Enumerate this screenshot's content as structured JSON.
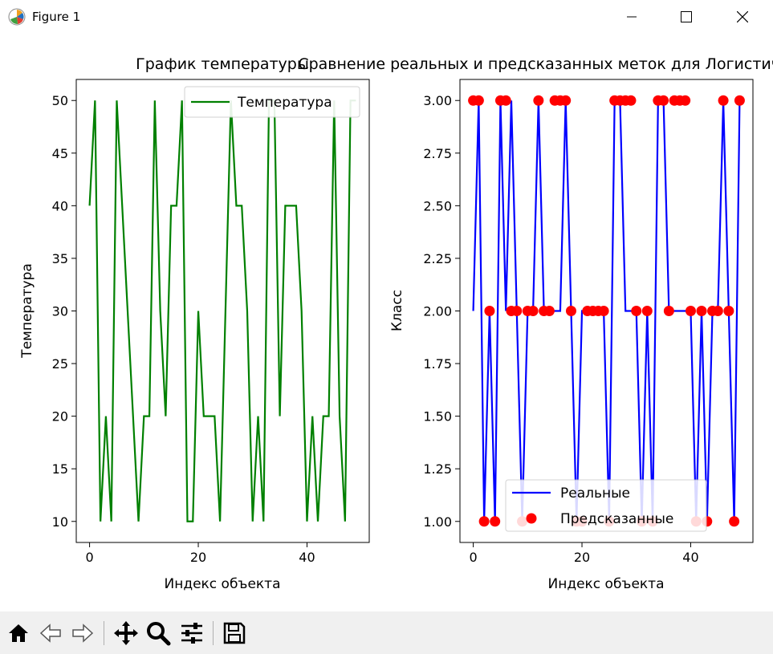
{
  "window": {
    "title": "Figure 1"
  },
  "chart_data": [
    {
      "type": "line",
      "title": "График температуры",
      "xlabel": "Индекс объекта",
      "ylabel": "Температура",
      "xlim": [
        -2.45,
        51.45
      ],
      "ylim": [
        8,
        52
      ],
      "xticks": [
        "0",
        "20",
        "40"
      ],
      "yticks": [
        "10",
        "15",
        "20",
        "25",
        "30",
        "35",
        "40",
        "45",
        "50"
      ],
      "legend_position": "top-right",
      "series": [
        {
          "name": "Температура",
          "color": "#008000",
          "x": [
            0,
            1,
            2,
            3,
            4,
            5,
            6,
            7,
            8,
            9,
            10,
            11,
            12,
            13,
            14,
            15,
            16,
            17,
            18,
            19,
            20,
            21,
            22,
            23,
            24,
            25,
            26,
            27,
            28,
            29,
            30,
            31,
            32,
            33,
            34,
            35,
            36,
            37,
            38,
            39,
            40,
            41,
            42,
            43,
            44,
            45,
            46,
            47,
            48,
            49
          ],
          "y": [
            40,
            50,
            10,
            20,
            10,
            50,
            40,
            30,
            20,
            10,
            20,
            20,
            50,
            30,
            20,
            40,
            40,
            50,
            10,
            10,
            30,
            20,
            20,
            20,
            10,
            30,
            50,
            40,
            40,
            30,
            10,
            20,
            10,
            50,
            50,
            20,
            40,
            40,
            40,
            30,
            10,
            20,
            10,
            20,
            20,
            50,
            20,
            10,
            50,
            50
          ]
        }
      ]
    },
    {
      "type": "line",
      "title": "Сравнение реальных и предсказанных меток для Логистической регрессии",
      "xlabel": "Индекс объекта",
      "ylabel": "Класс",
      "xlim": [
        -2.45,
        51.45
      ],
      "ylim": [
        0.9,
        3.1
      ],
      "xticks": [
        "0",
        "20",
        "40"
      ],
      "yticks": [
        "1.00",
        "1.25",
        "1.50",
        "1.75",
        "2.00",
        "2.25",
        "2.50",
        "2.75",
        "3.00"
      ],
      "legend_position": "bottom-right",
      "series": [
        {
          "name": "Реальные",
          "kind": "line",
          "color": "#0000ff",
          "x": [
            0,
            1,
            2,
            3,
            4,
            5,
            6,
            7,
            8,
            9,
            10,
            11,
            12,
            13,
            14,
            15,
            16,
            17,
            18,
            19,
            20,
            21,
            22,
            23,
            24,
            25,
            26,
            27,
            28,
            29,
            30,
            31,
            32,
            33,
            34,
            35,
            36,
            37,
            38,
            39,
            40,
            41,
            42,
            43,
            44,
            45,
            46,
            47,
            48,
            49
          ],
          "y": [
            2,
            3,
            1,
            2,
            1,
            3,
            2,
            3,
            2,
            1,
            2,
            2,
            3,
            2,
            2,
            2,
            2,
            3,
            2,
            1,
            2,
            2,
            2,
            2,
            2,
            1,
            3,
            3,
            2,
            2,
            2,
            1,
            2,
            1,
            3,
            3,
            2,
            2,
            2,
            2,
            2,
            1,
            2,
            1,
            2,
            2,
            3,
            2,
            1,
            3
          ]
        },
        {
          "name": "Предсказанные",
          "kind": "scatter",
          "color": "#ff0000",
          "x": [
            0,
            1,
            2,
            3,
            4,
            5,
            6,
            7,
            8,
            9,
            10,
            11,
            12,
            13,
            14,
            15,
            16,
            17,
            18,
            19,
            20,
            21,
            22,
            23,
            24,
            25,
            26,
            27,
            28,
            29,
            30,
            31,
            32,
            33,
            34,
            35,
            36,
            37,
            38,
            39,
            40,
            41,
            42,
            43,
            44,
            45,
            46,
            47,
            48,
            49
          ],
          "y": [
            3,
            3,
            1,
            2,
            1,
            3,
            3,
            2,
            2,
            1,
            2,
            2,
            3,
            2,
            2,
            3,
            3,
            3,
            2,
            1,
            1,
            2,
            2,
            2,
            2,
            1,
            3,
            3,
            3,
            3,
            2,
            1,
            2,
            1,
            3,
            3,
            2,
            3,
            3,
            3,
            2,
            1,
            2,
            1,
            2,
            2,
            3,
            2,
            1,
            3
          ]
        }
      ]
    }
  ],
  "toolbar": {
    "items": [
      "home-icon",
      "back-icon",
      "forward-icon",
      "pan-icon",
      "zoom-icon",
      "configure-icon",
      "save-icon"
    ]
  }
}
